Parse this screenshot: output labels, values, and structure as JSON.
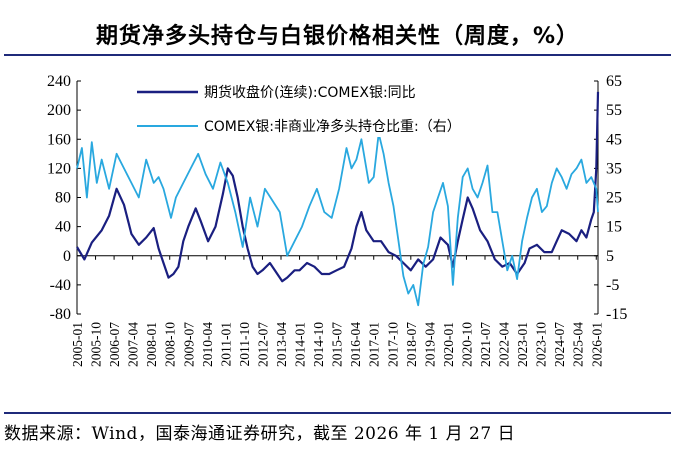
{
  "title": "期货净多头持仓与白银价格相关性（周度，%）",
  "source": "数据来源：Wind，国泰海通证券研究，截至 2026 年 1 月 27 日",
  "chart_data": {
    "type": "line",
    "left_axis": {
      "ticks": [
        240,
        200,
        160,
        120,
        80,
        40,
        0,
        -40,
        -80
      ],
      "ylim": [
        -80,
        240
      ]
    },
    "right_axis": {
      "ticks": [
        65,
        55,
        45,
        35,
        25,
        15,
        5,
        -5,
        -15
      ],
      "ylim": [
        -15,
        65
      ]
    },
    "x_tick_labels": [
      "2005-01",
      "2005-10",
      "2006-07",
      "2007-04",
      "2008-01",
      "2008-10",
      "2009-07",
      "2010-04",
      "2011-01",
      "2011-10",
      "2012-07",
      "2013-04",
      "2014-01",
      "2014-10",
      "2015-07",
      "2016-04",
      "2017-01",
      "2017-10",
      "2018-07",
      "2019-04",
      "2020-01",
      "2020-10",
      "2021-07",
      "2022-04",
      "2023-01",
      "2023-10",
      "2024-07",
      "2025-04",
      "2026-01"
    ],
    "legend": {
      "position": "top-left"
    },
    "series": [
      {
        "name": "期货收盘价(连续):COMEX银:同比",
        "axis": "left",
        "color": "#1a1f80",
        "t": [
          2005.0,
          2005.3,
          2005.6,
          2006.0,
          2006.3,
          2006.6,
          2006.9,
          2007.2,
          2007.5,
          2007.8,
          2008.1,
          2008.3,
          2008.5,
          2008.7,
          2008.9,
          2009.1,
          2009.3,
          2009.5,
          2009.8,
          2010.0,
          2010.3,
          2010.6,
          2010.9,
          2011.1,
          2011.3,
          2011.5,
          2011.7,
          2011.9,
          2012.1,
          2012.3,
          2012.5,
          2012.8,
          2013.0,
          2013.3,
          2013.5,
          2013.8,
          2014.0,
          2014.3,
          2014.6,
          2014.9,
          2015.2,
          2015.5,
          2015.8,
          2016.1,
          2016.3,
          2016.5,
          2016.7,
          2017.0,
          2017.3,
          2017.6,
          2017.9,
          2018.2,
          2018.5,
          2018.8,
          2019.1,
          2019.4,
          2019.7,
          2020.0,
          2020.2,
          2020.4,
          2020.6,
          2020.8,
          2021.0,
          2021.3,
          2021.6,
          2021.9,
          2022.2,
          2022.5,
          2022.8,
          2023.1,
          2023.3,
          2023.6,
          2023.9,
          2024.2,
          2024.4,
          2024.6,
          2024.9,
          2025.2,
          2025.4,
          2025.6,
          2025.8,
          2025.9,
          2026.0,
          2026.07
        ],
        "values": [
          12,
          -5,
          18,
          35,
          55,
          92,
          70,
          30,
          15,
          25,
          38,
          10,
          -10,
          -30,
          -25,
          -15,
          20,
          40,
          65,
          48,
          20,
          40,
          85,
          120,
          110,
          80,
          40,
          10,
          -15,
          -25,
          -20,
          -10,
          -20,
          -35,
          -30,
          -20,
          -20,
          -10,
          -15,
          -25,
          -25,
          -20,
          -15,
          10,
          40,
          60,
          35,
          20,
          20,
          5,
          0,
          -10,
          -20,
          -5,
          -15,
          -5,
          25,
          15,
          -15,
          20,
          50,
          80,
          65,
          35,
          20,
          -5,
          -15,
          -10,
          -25,
          -10,
          10,
          15,
          5,
          5,
          20,
          35,
          30,
          20,
          35,
          25,
          50,
          60,
          120,
          225
        ]
      },
      {
        "name": "COMEX银:非商业净多头持仓比重:（右）",
        "axis": "right",
        "color": "#29a8df",
        "t": [
          2005.0,
          2005.2,
          2005.4,
          2005.6,
          2005.8,
          2006.0,
          2006.3,
          2006.6,
          2006.9,
          2007.2,
          2007.5,
          2007.8,
          2008.1,
          2008.3,
          2008.5,
          2008.8,
          2009.0,
          2009.3,
          2009.6,
          2009.9,
          2010.2,
          2010.5,
          2010.8,
          2011.1,
          2011.4,
          2011.7,
          2012.0,
          2012.3,
          2012.6,
          2012.9,
          2013.2,
          2013.5,
          2013.8,
          2014.1,
          2014.4,
          2014.7,
          2015.0,
          2015.3,
          2015.6,
          2015.9,
          2016.1,
          2016.3,
          2016.5,
          2016.8,
          2017.0,
          2017.2,
          2017.4,
          2017.6,
          2017.8,
          2018.0,
          2018.2,
          2018.4,
          2018.6,
          2018.8,
          2019.0,
          2019.2,
          2019.4,
          2019.6,
          2019.8,
          2020.0,
          2020.2,
          2020.4,
          2020.6,
          2020.8,
          2021.0,
          2021.2,
          2021.4,
          2021.6,
          2021.8,
          2022.0,
          2022.2,
          2022.4,
          2022.6,
          2022.8,
          2023.0,
          2023.2,
          2023.4,
          2023.6,
          2023.8,
          2024.0,
          2024.2,
          2024.4,
          2024.6,
          2024.8,
          2025.0,
          2025.2,
          2025.4,
          2025.6,
          2025.8,
          2026.0,
          2026.07
        ],
        "values": [
          35,
          42,
          25,
          44,
          30,
          38,
          28,
          40,
          35,
          30,
          25,
          38,
          30,
          32,
          28,
          18,
          25,
          30,
          35,
          40,
          33,
          28,
          37,
          30,
          20,
          8,
          25,
          15,
          28,
          24,
          20,
          5,
          10,
          15,
          22,
          28,
          20,
          18,
          28,
          42,
          35,
          38,
          45,
          30,
          32,
          47,
          40,
          30,
          22,
          10,
          -2,
          -8,
          -5,
          -12,
          2,
          8,
          20,
          25,
          30,
          22,
          -5,
          18,
          32,
          35,
          28,
          25,
          30,
          36,
          20,
          20,
          10,
          0,
          5,
          -3,
          10,
          18,
          25,
          28,
          20,
          22,
          30,
          35,
          32,
          28,
          33,
          35,
          38,
          30,
          32,
          28,
          20
        ]
      }
    ]
  }
}
